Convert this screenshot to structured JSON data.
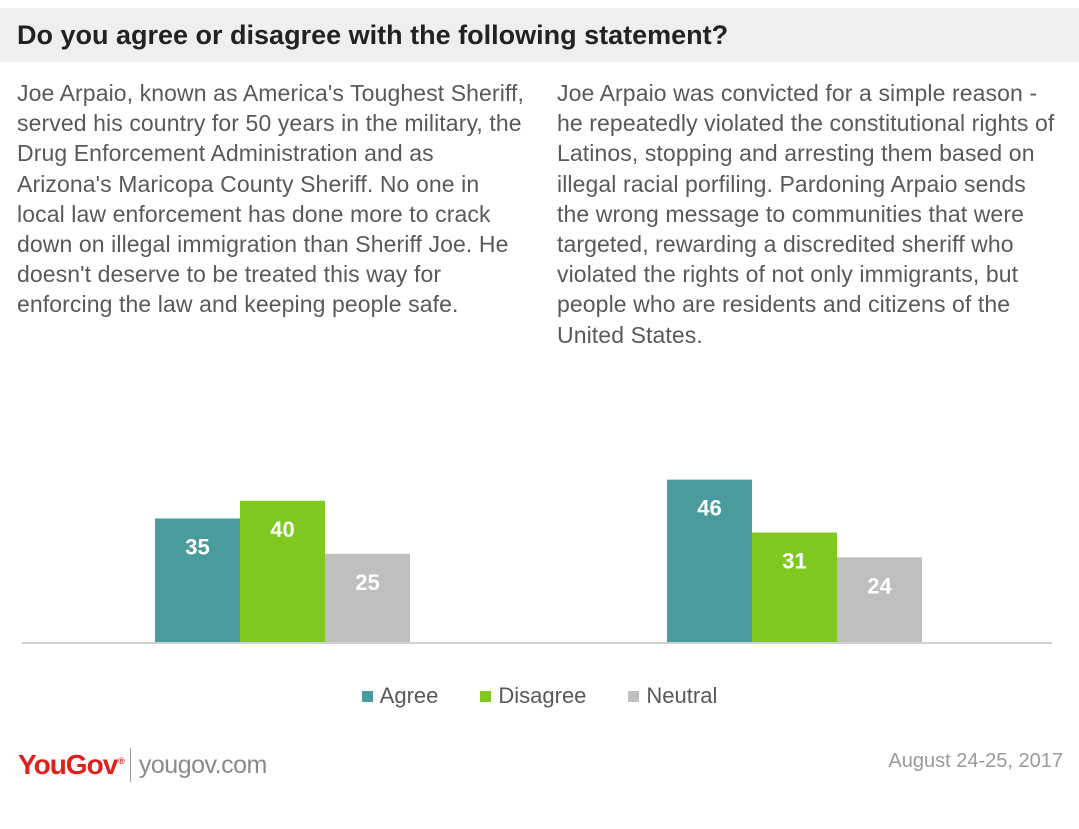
{
  "header": {
    "title": "Do you agree or disagree with the following statement?"
  },
  "statements": {
    "left": "Joe Arpaio, known as America's Toughest Sheriff, served his country for 50 years in the military, the Drug Enforcement Administration and as Arizona's Maricopa County Sheriff. No one in local law enforcement has done more to crack down on illegal immigration than Sheriff Joe.  He doesn't deserve to be treated this way for enforcing the law and keeping people safe.",
    "right": "Joe Arpaio was convicted for a simple reason - he repeatedly violated the constitutional rights of Latinos, stopping and arresting them based on illegal racial porfiling.  Pardoning Arpaio sends the wrong message to communities that were targeted, rewarding a discredited sheriff who violated the rights of not only immigrants, but people who are residents and citizens of the United States."
  },
  "chart_data": {
    "type": "bar",
    "categories": [
      "",
      ""
    ],
    "series": [
      {
        "name": "Agree",
        "values": [
          35,
          46
        ],
        "color": "#4a9c9c"
      },
      {
        "name": "Disagree",
        "values": [
          40,
          31
        ],
        "color": "#7ec81f"
      },
      {
        "name": "Neutral",
        "values": [
          25,
          24
        ],
        "color": "#bfbfbf"
      }
    ],
    "ylim": [
      0,
      50
    ],
    "grid": false,
    "legend_position": "bottom"
  },
  "footer": {
    "logo_text": "YouGov",
    "logo_sup": "®",
    "url": "yougov.com",
    "date": "August 24-25, 2017"
  }
}
